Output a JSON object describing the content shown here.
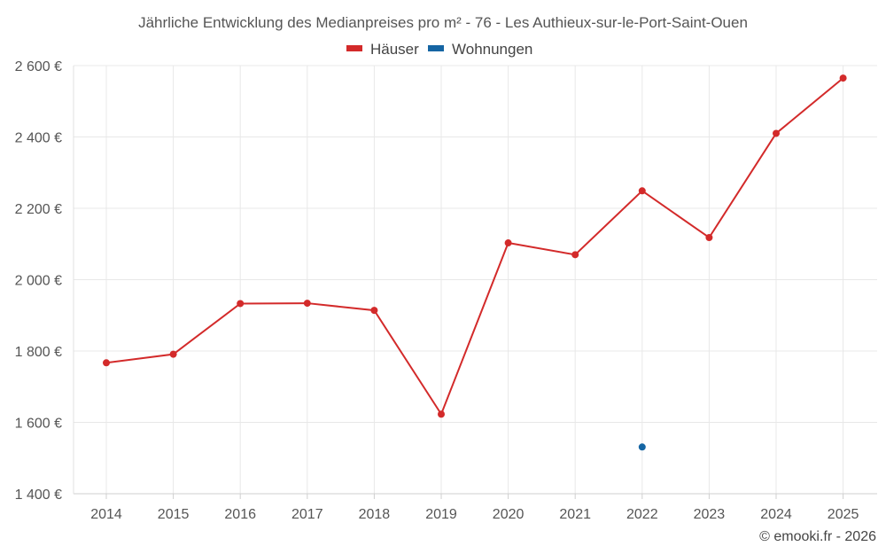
{
  "chart_data": {
    "type": "line",
    "title": "Jährliche Entwicklung des Medianpreises pro m² - 76 - Les Authieux-sur-le-Port-Saint-Ouen",
    "categories": [
      "2014",
      "2015",
      "2016",
      "2017",
      "2018",
      "2019",
      "2020",
      "2021",
      "2022",
      "2023",
      "2024",
      "2025"
    ],
    "series": [
      {
        "name": "Häuser",
        "color": "#d32a2a",
        "values": [
          1767,
          1791,
          1933,
          1934,
          1914,
          1623,
          2103,
          2070,
          2249,
          2118,
          2410,
          2565
        ]
      },
      {
        "name": "Wohnungen",
        "color": "#1565a3",
        "values": [
          null,
          null,
          null,
          null,
          null,
          null,
          null,
          null,
          1531,
          null,
          null,
          null
        ]
      }
    ],
    "ylim": [
      1400,
      2600
    ],
    "yticks": [
      1400,
      1600,
      1800,
      2000,
      2200,
      2400,
      2600
    ],
    "ytick_labels": [
      "1 400 €",
      "1 600 €",
      "1 800 €",
      "2 000 €",
      "2 200 €",
      "2 400 €",
      "2 600 €"
    ],
    "xlabel": "",
    "ylabel": "",
    "grid": true,
    "legend_position": "top-center"
  },
  "credit": "© emooki.fr - 2026"
}
